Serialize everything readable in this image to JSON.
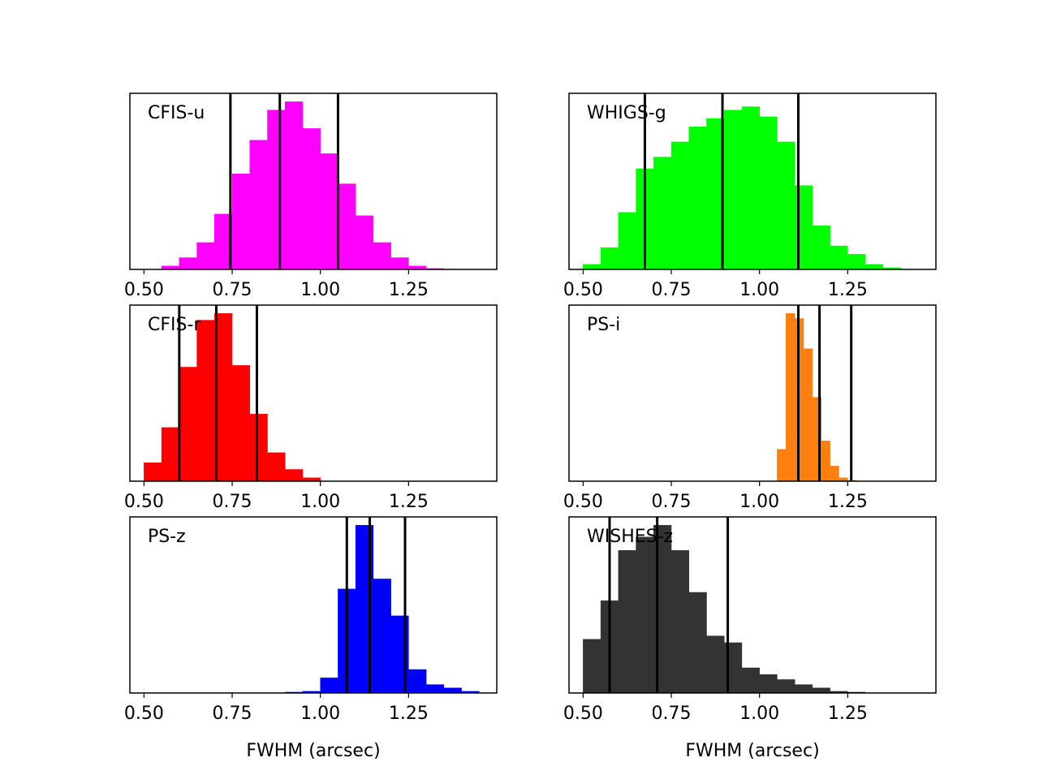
{
  "chart_data": [
    {
      "type": "bar",
      "label": "CFIS-u",
      "color": "#ff00ff",
      "bin_width": 0.05,
      "bin_edges_start": 0.55,
      "values": [
        0.02,
        0.07,
        0.16,
        0.33,
        0.57,
        0.77,
        0.95,
        1.0,
        0.84,
        0.69,
        0.51,
        0.32,
        0.16,
        0.07,
        0.02,
        0.005
      ],
      "percentile_lines": [
        0.745,
        0.885,
        1.05
      ],
      "xlim": [
        0.46,
        1.5
      ],
      "xticks": [
        "0.50",
        "0.75",
        "1.00",
        "1.25"
      ],
      "xtick_values": [
        0.5,
        0.75,
        1.0,
        1.25
      ],
      "xlabel": ""
    },
    {
      "type": "bar",
      "label": "WHIGS-g",
      "color": "#00ff00",
      "bin_width": 0.05,
      "bin_edges_start": 0.5,
      "values": [
        0.03,
        0.13,
        0.34,
        0.6,
        0.67,
        0.76,
        0.85,
        0.9,
        0.95,
        0.97,
        0.91,
        0.76,
        0.5,
        0.26,
        0.14,
        0.09,
        0.03,
        0.01
      ],
      "percentile_lines": [
        0.675,
        0.895,
        1.11
      ],
      "xlim": [
        0.46,
        1.5
      ],
      "xticks": [
        "0.50",
        "0.75",
        "1.00",
        "1.25"
      ],
      "xtick_values": [
        0.5,
        0.75,
        1.0,
        1.25
      ],
      "xlabel": ""
    },
    {
      "type": "bar",
      "label": "CFIS-r",
      "color": "#ff0000",
      "bin_width": 0.05,
      "bin_edges_start": 0.5,
      "values": [
        0.11,
        0.32,
        0.68,
        0.96,
        1.0,
        0.69,
        0.4,
        0.17,
        0.07,
        0.02
      ],
      "percentile_lines": [
        0.6,
        0.705,
        0.82
      ],
      "xlim": [
        0.46,
        1.5
      ],
      "xticks": [
        "0.50",
        "0.75",
        "1.00",
        "1.25"
      ],
      "xtick_values": [
        0.5,
        0.75,
        1.0,
        1.25
      ],
      "xlabel": ""
    },
    {
      "type": "bar",
      "label": "PS-i",
      "color": "#ff7f0e",
      "bin_width": 0.025,
      "bin_edges_start": 1.05,
      "values": [
        0.19,
        1.0,
        0.97,
        0.79,
        0.5,
        0.24,
        0.09,
        0.02,
        0.005
      ],
      "percentile_lines": [
        1.11,
        1.17,
        1.26
      ],
      "xlim": [
        0.46,
        1.5
      ],
      "xticks": [
        "0.50",
        "0.75",
        "1.00",
        "1.25"
      ],
      "xtick_values": [
        0.5,
        0.75,
        1.0,
        1.25
      ],
      "xlabel": ""
    },
    {
      "type": "bar",
      "label": "PS-z",
      "color": "#0000ff",
      "bin_width": 0.05,
      "bin_edges_start": 0.9,
      "values": [
        0.005,
        0.01,
        0.09,
        0.62,
        1.0,
        0.68,
        0.46,
        0.14,
        0.05,
        0.03,
        0.01
      ],
      "bin_edges_override": [
        0.9,
        0.95,
        1.0,
        1.05,
        1.1,
        1.15,
        1.2,
        1.25,
        1.3,
        1.35,
        1.4,
        1.45
      ],
      "percentile_lines": [
        1.075,
        1.14,
        1.24
      ],
      "xlim": [
        0.46,
        1.5
      ],
      "xticks": [
        "0.50",
        "0.75",
        "1.00",
        "1.25"
      ],
      "xtick_values": [
        0.5,
        0.75,
        1.0,
        1.25
      ],
      "xlabel": "FWHM (arcsec)"
    },
    {
      "type": "bar",
      "label": "WISHES-z",
      "color": "#333333",
      "bin_width": 0.05,
      "bin_edges_start": 0.5,
      "values": [
        0.32,
        0.55,
        0.85,
        0.93,
        1.0,
        0.85,
        0.6,
        0.34,
        0.3,
        0.15,
        0.11,
        0.08,
        0.05,
        0.03,
        0.01,
        0.005
      ],
      "percentile_lines": [
        0.575,
        0.71,
        0.91
      ],
      "xlim": [
        0.46,
        1.5
      ],
      "xticks": [
        "0.50",
        "0.75",
        "1.00",
        "1.25"
      ],
      "xtick_values": [
        0.5,
        0.75,
        1.0,
        1.25
      ],
      "xlabel": "FWHM (arcsec)"
    }
  ]
}
